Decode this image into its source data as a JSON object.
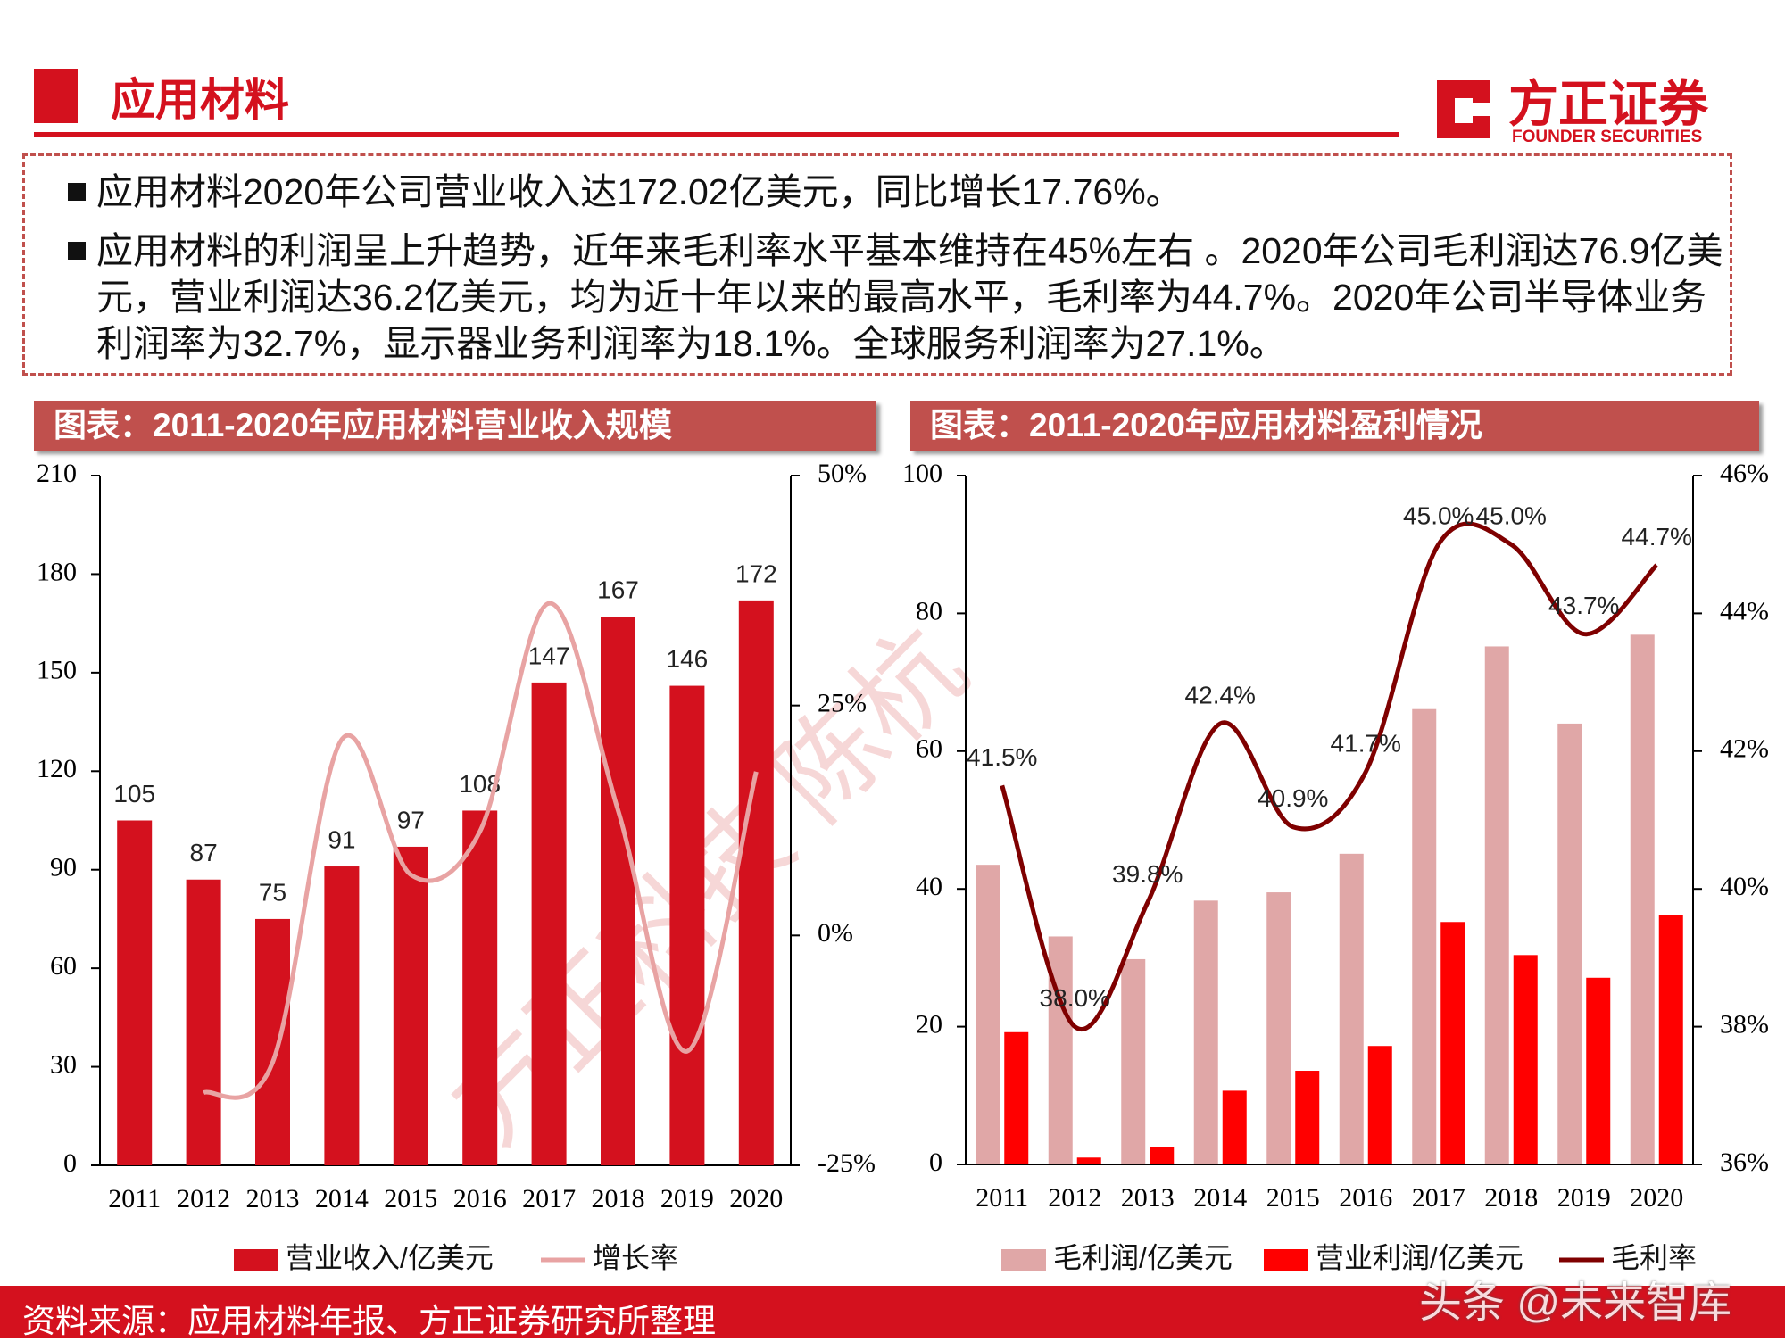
{
  "header": {
    "title": "应用材料",
    "logo_cn": "方正证券",
    "logo_en": "FOUNDER SECURITIES"
  },
  "bullets": [
    "应用材料2020年公司营业收入达172.02亿美元，同比增长17.76%。",
    "应用材料的利润呈上升趋势，近年来毛利率水平基本维持在45%左右 。2020年公司毛利润达76.9亿美元，营业利润达36.2亿美元，均为近十年以来的最高水平，毛利率为44.7%。2020年公司半导体业务利润率为32.7%，显示器业务利润率为18.1%。全球服务利润率为27.1%。"
  ],
  "chart_data": [
    {
      "type": "bar",
      "title": "图表：2011-2020年应用材料营业收入规模",
      "categories": [
        "2011",
        "2012",
        "2013",
        "2014",
        "2015",
        "2016",
        "2017",
        "2018",
        "2019",
        "2020"
      ],
      "series": [
        {
          "name": "营业收入/亿美元",
          "type": "bar",
          "color": "#d4111e",
          "values": [
            105,
            87,
            75,
            91,
            97,
            108,
            147,
            167,
            146,
            172
          ],
          "value_labels_shown": true
        },
        {
          "name": "增长率",
          "type": "line",
          "color": "#e8a3a3",
          "axis": "y2",
          "values": [
            null,
            -17.1,
            -13.8,
            21.3,
            6.6,
            11.3,
            36.1,
            13.6,
            -12.6,
            17.8
          ]
        }
      ],
      "ylim": [
        0,
        210
      ],
      "yticks": [
        0,
        30,
        60,
        90,
        120,
        150,
        180,
        210
      ],
      "y2lim": [
        -25,
        50
      ],
      "y2ticks": [
        {
          "value": -25,
          "label": "-25%"
        },
        {
          "value": 0,
          "label": "0%"
        },
        {
          "value": 25,
          "label": "25%"
        },
        {
          "value": 50,
          "label": "50%"
        }
      ]
    },
    {
      "type": "bar",
      "title": "图表：2011-2020年应用材料盈利情况",
      "categories": [
        "2011",
        "2012",
        "2013",
        "2014",
        "2015",
        "2016",
        "2017",
        "2018",
        "2019",
        "2020"
      ],
      "series": [
        {
          "name": "毛利润/亿美元",
          "type": "bar",
          "color": "#e0a7a7",
          "values": [
            43.5,
            33.1,
            29.8,
            38.3,
            39.5,
            45.1,
            66.1,
            75.2,
            64.0,
            76.9
          ]
        },
        {
          "name": "营业利润/亿美元",
          "type": "bar",
          "color": "#ff0000",
          "values": [
            19.2,
            1.0,
            2.5,
            10.7,
            13.6,
            17.2,
            35.2,
            30.4,
            27.1,
            36.2
          ]
        },
        {
          "name": "毛利率",
          "type": "line",
          "color": "#7f0000",
          "axis": "y2",
          "values": [
            41.5,
            38.0,
            39.8,
            42.4,
            40.9,
            41.7,
            45.0,
            45.0,
            43.7,
            44.7
          ],
          "value_labels": [
            "41.5%",
            "38.0%",
            "39.8%",
            "42.4%",
            "40.9%",
            "41.7%",
            "45.0%",
            "45.0%",
            "43.7%",
            "44.7%"
          ]
        }
      ],
      "ylim": [
        0,
        100
      ],
      "yticks": [
        0,
        20,
        40,
        60,
        80,
        100
      ],
      "y2lim": [
        36,
        46
      ],
      "y2ticks": [
        {
          "value": 36,
          "label": "36%"
        },
        {
          "value": 38,
          "label": "38%"
        },
        {
          "value": 40,
          "label": "40%"
        },
        {
          "value": 42,
          "label": "42%"
        },
        {
          "value": 44,
          "label": "44%"
        },
        {
          "value": 46,
          "label": "46%"
        }
      ]
    }
  ],
  "watermark": "方正科技 陈杭",
  "footer": {
    "source": "资料来源：应用材料年报、方正证券研究所整理",
    "credit": "头条 @未来智库"
  }
}
